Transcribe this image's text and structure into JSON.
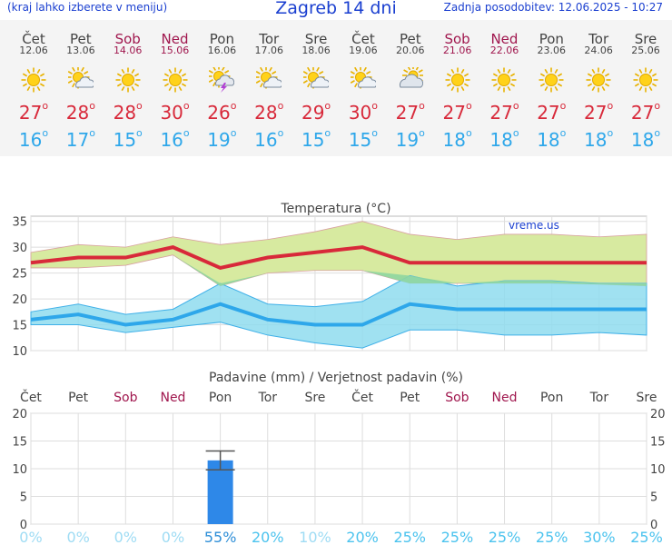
{
  "header": {
    "hint": "(kraj lahko izberete v meniju)",
    "title": "Zagreb 14 dni",
    "updated": "Zadnja posodobitev: 12.06.2025 - 10:27"
  },
  "days": [
    {
      "name": "Čet",
      "date": "12.06",
      "weekend": false,
      "icon": "sun-icon",
      "tmax": "27",
      "tmin": "16"
    },
    {
      "name": "Pet",
      "date": "13.06",
      "weekend": false,
      "icon": "sun-cloud-icon",
      "tmax": "28",
      "tmin": "17"
    },
    {
      "name": "Sob",
      "date": "14.06",
      "weekend": true,
      "icon": "sun-icon",
      "tmax": "28",
      "tmin": "15"
    },
    {
      "name": "Ned",
      "date": "15.06",
      "weekend": true,
      "icon": "sun-icon",
      "tmax": "30",
      "tmin": "16"
    },
    {
      "name": "Pon",
      "date": "16.06",
      "weekend": false,
      "icon": "thunderstorm-sun-icon",
      "tmax": "26",
      "tmin": "19"
    },
    {
      "name": "Tor",
      "date": "17.06",
      "weekend": false,
      "icon": "sun-cloud-icon",
      "tmax": "28",
      "tmin": "16"
    },
    {
      "name": "Sre",
      "date": "18.06",
      "weekend": false,
      "icon": "sun-cloud-icon",
      "tmax": "29",
      "tmin": "15"
    },
    {
      "name": "Čet",
      "date": "19.06",
      "weekend": false,
      "icon": "sun-cloud-icon",
      "tmax": "30",
      "tmin": "15"
    },
    {
      "name": "Pet",
      "date": "20.06",
      "weekend": false,
      "icon": "cloud-sun-icon",
      "tmax": "27",
      "tmin": "19"
    },
    {
      "name": "Sob",
      "date": "21.06",
      "weekend": true,
      "icon": "sun-icon",
      "tmax": "27",
      "tmin": "18"
    },
    {
      "name": "Ned",
      "date": "22.06",
      "weekend": true,
      "icon": "sun-icon",
      "tmax": "27",
      "tmin": "18"
    },
    {
      "name": "Pon",
      "date": "23.06",
      "weekend": false,
      "icon": "sun-icon",
      "tmax": "27",
      "tmin": "18"
    },
    {
      "name": "Tor",
      "date": "24.06",
      "weekend": false,
      "icon": "sun-icon",
      "tmax": "27",
      "tmin": "18"
    },
    {
      "name": "Sre",
      "date": "25.06",
      "weekend": false,
      "icon": "sun-icon",
      "tmax": "27",
      "tmin": "18"
    }
  ],
  "colors": {
    "title_blue": "#1a3fd0",
    "max_red": "#d8293a",
    "min_blue": "#2ea7ea",
    "weekend": "#a0174e",
    "max_band": "#d7eaa0",
    "overlap_band": "#8fd6a0",
    "min_band": "#8fdcee",
    "bar_blue": "#2e88e8"
  },
  "chart_data": [
    {
      "type": "line",
      "title": "Temperatura (°C)",
      "watermark": "vreme.us",
      "ylim": [
        10,
        36
      ],
      "yticks": [
        10,
        15,
        20,
        25,
        30,
        35
      ],
      "grid": true,
      "series": [
        {
          "values": [
            27,
            28,
            28,
            30,
            26,
            28,
            29,
            30,
            27,
            27,
            27,
            27,
            27,
            27
          ]
        },
        {
          "values": [
            26,
            26,
            26.5,
            28.5,
            22.5,
            25,
            25.5,
            25.5,
            23,
            23,
            23,
            23,
            22.8,
            22.5
          ]
        },
        {
          "values": [
            29,
            30.5,
            30,
            32,
            30.5,
            31.5,
            33,
            35,
            32.5,
            31.5,
            32.5,
            32.5,
            32,
            32.5
          ]
        },
        {
          "values": [
            16,
            17,
            15,
            16,
            19,
            16,
            15,
            15,
            19,
            18,
            18,
            18,
            18,
            18
          ]
        },
        {
          "values": [
            15,
            15,
            13.5,
            14.5,
            15.5,
            13,
            11.5,
            10.5,
            14,
            14,
            13,
            13,
            13.5,
            13
          ]
        },
        {
          "values": [
            17.5,
            19,
            17,
            18,
            23,
            19,
            18.5,
            19.5,
            24.5,
            22.5,
            23.5,
            23.5,
            23,
            23
          ]
        }
      ]
    },
    {
      "type": "bar",
      "title": "Padavine (mm) / Verjetnost padavin (%)",
      "categories": [
        "Čet",
        "Pet",
        "Sob",
        "Ned",
        "Pon",
        "Tor",
        "Sre",
        "Čet",
        "Pet",
        "Sob",
        "Ned",
        "Pon",
        "Tor",
        "Sre"
      ],
      "weekend": [
        false,
        false,
        true,
        true,
        false,
        false,
        false,
        false,
        false,
        true,
        true,
        false,
        false,
        false
      ],
      "ylim": [
        0,
        20
      ],
      "yticks": [
        0,
        5,
        10,
        15,
        20
      ],
      "values": [
        0,
        0,
        0,
        0,
        11.5,
        0,
        0,
        0,
        0,
        0,
        0,
        0,
        0,
        0
      ],
      "error_high": [
        null,
        null,
        null,
        null,
        13.2,
        null,
        null,
        null,
        null,
        null,
        null,
        null,
        null,
        null
      ],
      "error_low": [
        null,
        null,
        null,
        null,
        9.8,
        null,
        null,
        null,
        null,
        null,
        null,
        null,
        null,
        null
      ],
      "probability": [
        "0%",
        "0%",
        "0%",
        "0%",
        "55%",
        "20%",
        "10%",
        "20%",
        "25%",
        "25%",
        "25%",
        "25%",
        "30%",
        "25%"
      ]
    }
  ]
}
